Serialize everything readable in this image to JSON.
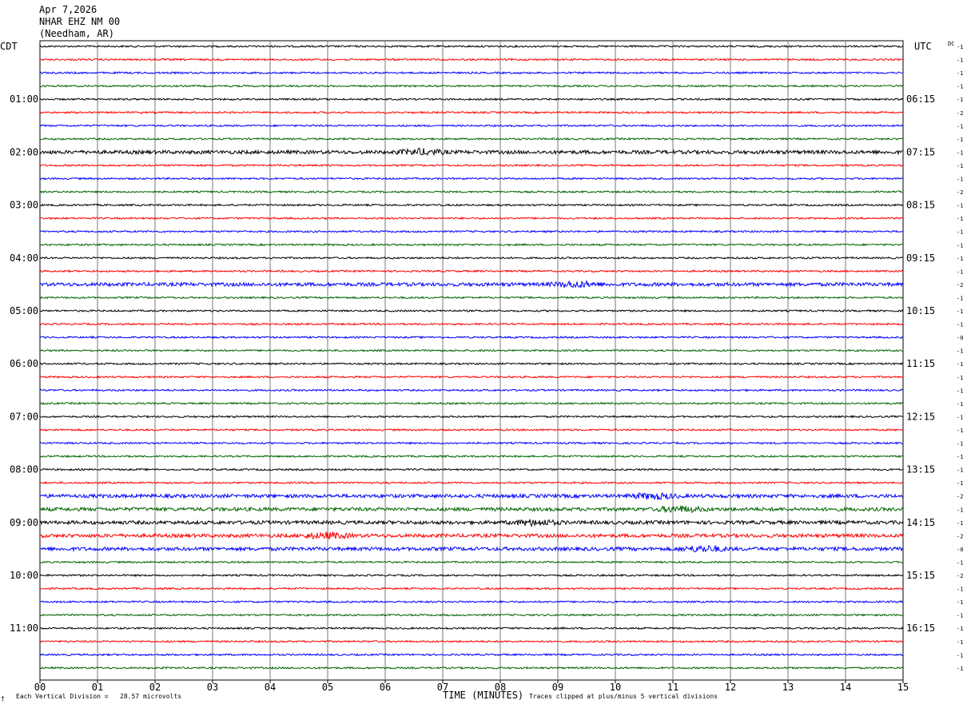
{
  "header": {
    "date": "Apr 7,2026",
    "station": "NHAR EHZ NM 00",
    "location": "(Needham, AR)"
  },
  "left_tz": "CDT",
  "right_tz": "UTC",
  "dc_label": "DC",
  "footer": {
    "scale_icon": "†",
    "scale_note": "Each Vertical Division =   28.57 microvolts",
    "xlabel": "TIME (MINUTES)",
    "clip_note": "Traces clipped at plus/minus 5 vertical divisions"
  },
  "colors": [
    "#000000",
    "#ff0000",
    "#0000ff",
    "#006400"
  ],
  "chart_data": {
    "type": "line",
    "xlabel": "TIME (MINUTES)",
    "xlim": [
      0,
      15
    ],
    "x_ticks": [
      "00",
      "01",
      "02",
      "03",
      "04",
      "05",
      "06",
      "07",
      "08",
      "09",
      "10",
      "11",
      "12",
      "13",
      "14",
      "15"
    ],
    "left_hour_labels": [
      "01:00",
      "02:00",
      "03:00",
      "04:00",
      "05:00",
      "06:00",
      "07:00",
      "08:00",
      "09:00",
      "10:00",
      "11:00"
    ],
    "right_hour_labels": [
      "06:15",
      "07:15",
      "08:15",
      "09:15",
      "10:15",
      "11:15",
      "12:15",
      "13:15",
      "14:15",
      "15:15",
      "16:15"
    ],
    "hour_label_rows": [
      4,
      8,
      12,
      16,
      20,
      24,
      28,
      32,
      36,
      40,
      44
    ],
    "dc_offsets": [
      "-1",
      "-1",
      "-1",
      "-1",
      "-1",
      "-2",
      "-1",
      "-1",
      "-1",
      "-1",
      "-1",
      "-2",
      "-1",
      "-1",
      "-1",
      "-1",
      "-1",
      "-1",
      "-2",
      "-1",
      "-1",
      "-1",
      "-0",
      "-1",
      "-1",
      "-1",
      "-1",
      "-1",
      "-1",
      "-1",
      "-1",
      "-1",
      "-1",
      "-1",
      "-2",
      "-1",
      "-1",
      "-2",
      "-0",
      "-1",
      "-2",
      "-1",
      "-1",
      "-1",
      "-1",
      "-1",
      "-1",
      "-1"
    ],
    "trace_activity": [
      1,
      1,
      1,
      1,
      1,
      1,
      1,
      1,
      2,
      1,
      1,
      1,
      1,
      1,
      1,
      1,
      1,
      1,
      2,
      1,
      1,
      1,
      1,
      1,
      1,
      1,
      1,
      1,
      1,
      1,
      1,
      1,
      1,
      1,
      2,
      2,
      2,
      2,
      2,
      1,
      1,
      1,
      1,
      1,
      1,
      1,
      1,
      1
    ]
  }
}
